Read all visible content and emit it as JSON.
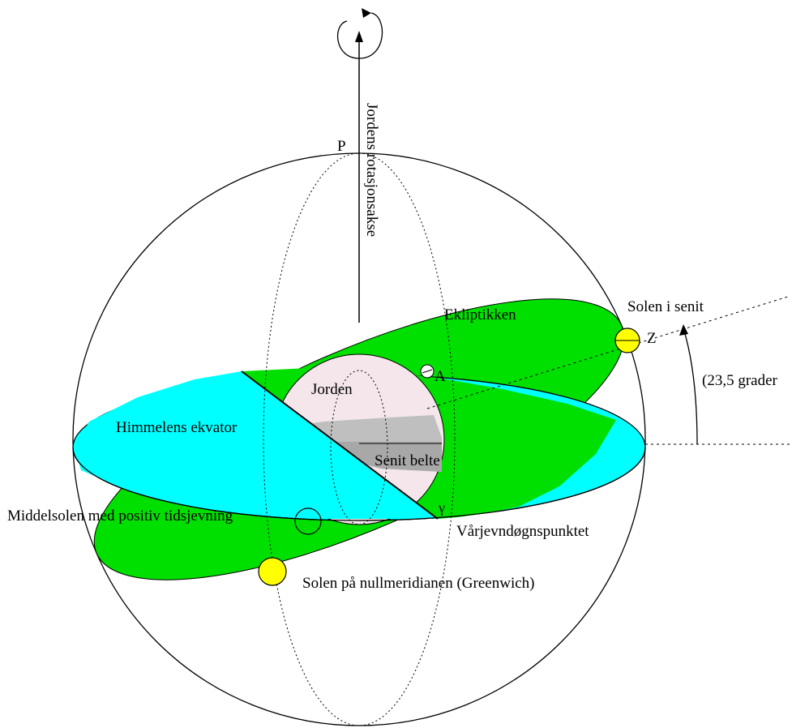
{
  "labels": {
    "rotation_axis": "Jordens rotasjonsakse",
    "pole": "P",
    "ecliptic": "Ekliptikken",
    "sun_zenith": "Solen i senit",
    "zenith_point": "Z",
    "angle": "(23,5 grader",
    "earth": "Jorden",
    "point_a": "A",
    "celestial_equator": "Himmelens ekvator",
    "zenith_belt": "Senit belte",
    "mean_sun": "Middelsolen med positiv tidsjevning",
    "gamma": "γ",
    "vernal_equinox": "Vårjevndøgnspunktet",
    "sun_greenwich": "Solen på nullmeridianen (Greenwich)"
  },
  "colors": {
    "ecliptic_plane": "#00e000",
    "equator_plane": "#00ffff",
    "sun": "#ffff00",
    "earth": "#f4e6ea",
    "zenith_belt": "#bfbfbf",
    "outline": "#000000"
  }
}
